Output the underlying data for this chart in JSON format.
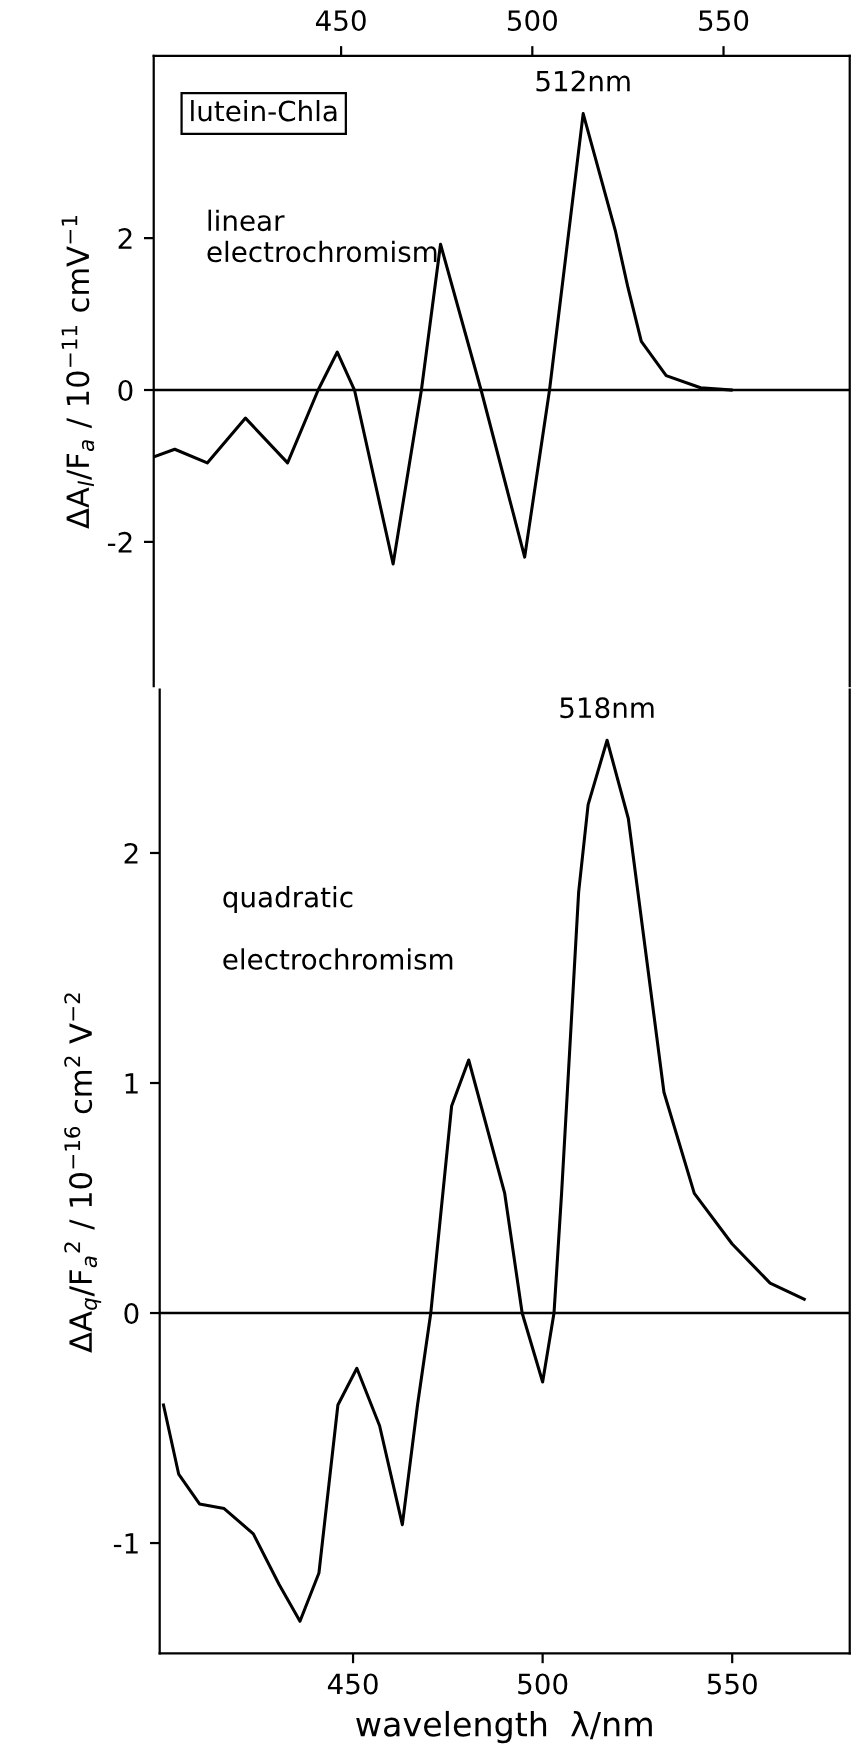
{
  "chart_data": [
    {
      "type": "line",
      "xlim": [
        401,
        583
      ],
      "xticks": [
        450,
        500,
        550
      ],
      "ylim": [
        -3.9,
        4.4
      ],
      "yticks": [
        -2,
        0,
        2
      ],
      "ylabel": "ΔA$_{l}$/F$_{a}$ / 10$^{−11}$ cmV$^{−1}$",
      "grid": false,
      "legend": false,
      "marker": "none",
      "line_style": "solid",
      "series": [
        {
          "color": "#000000",
          "x": [
            401,
            406.5,
            415,
            425,
            436,
            444,
            449,
            453.5,
            463.6,
            471,
            476,
            486.6,
            498,
            504.5,
            513.3,
            521.7,
            525,
            528.5,
            535,
            544,
            552
          ],
          "values": [
            -0.88,
            -0.78,
            -0.96,
            -0.37,
            -0.96,
            0,
            0.5,
            0,
            -2.29,
            0,
            1.92,
            0,
            -2.2,
            0,
            3.64,
            2.1,
            1.35,
            0.64,
            0.19,
            0.03,
            0
          ]
        }
      ],
      "ref_lines": [
        {
          "axis": "y",
          "value": 0,
          "color": "#000000"
        }
      ],
      "annotations": [
        {
          "text": "512nm",
          "x": 513.3,
          "y": 3.64
        },
        "lutein-Chla",
        "linear\nelectrochromism"
      ]
    },
    {
      "type": "line",
      "xlim": [
        399,
        581
      ],
      "xticks": [
        450,
        500,
        550
      ],
      "ylim": [
        -1.48,
        2.71
      ],
      "yticks": [
        -1,
        0,
        1,
        2
      ],
      "xlabel": "wavelength  λ/nm",
      "ylabel": "ΔA$_{q}$/F$_{a}$$^{2}$ / 10$^{−16}$ cm$^{2}$ V$^{−2}$",
      "grid": false,
      "legend": false,
      "marker": "none",
      "line_style": "solid",
      "series": [
        {
          "color": "#000000",
          "x": [
            400,
            404,
            409.5,
            416,
            423.7,
            430.5,
            436,
            441,
            446,
            451,
            457,
            463,
            467,
            470.5,
            476,
            480.5,
            490,
            494.6,
            500,
            503,
            505,
            509.5,
            512,
            517,
            522.6,
            532,
            540,
            550,
            560,
            569
          ],
          "values": [
            -0.4,
            -0.7,
            -0.83,
            -0.85,
            -0.96,
            -1.18,
            -1.34,
            -1.13,
            -0.4,
            -0.24,
            -0.49,
            -0.92,
            -0.4,
            0,
            0.9,
            1.1,
            0.52,
            0,
            -0.3,
            0,
            0.52,
            1.83,
            2.21,
            2.49,
            2.15,
            0.96,
            0.52,
            0.3,
            0.13,
            0.06
          ]
        }
      ],
      "ref_lines": [
        {
          "axis": "y",
          "value": 0,
          "color": "#000000"
        }
      ],
      "annotations": [
        {
          "text": "518nm",
          "x": 517,
          "y": 2.49
        },
        "quadratic\n\nelectrochromism"
      ]
    }
  ]
}
